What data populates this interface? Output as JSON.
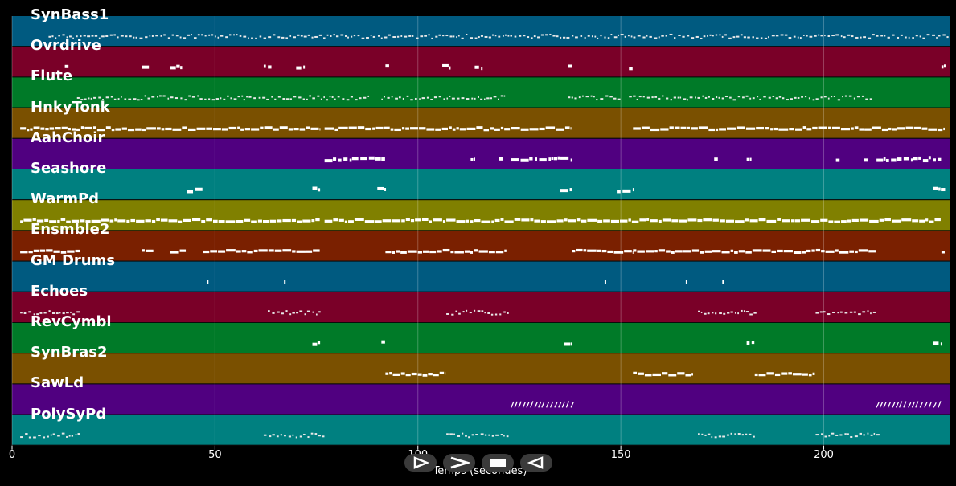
{
  "xlabel": "Temps (secondes)",
  "ticks": [
    "0",
    "50",
    "100",
    "150",
    "200"
  ],
  "controls": {
    "play": "play-icon",
    "forward": "forward-icon",
    "stop": "stop-icon",
    "rewind": "rewind-icon"
  },
  "chart_data": {
    "type": "piano-roll",
    "xlim": [
      0,
      231
    ],
    "xticks": [
      0,
      50,
      100,
      150,
      200
    ],
    "grid": true,
    "tracks": [
      {
        "name": "SynBass1",
        "color": "#005a80",
        "active": [
          [
            9,
            231
          ]
        ],
        "style": "dots"
      },
      {
        "name": "Ovrdrive",
        "color": "#7a0028",
        "active": [
          [
            13,
            14
          ],
          [
            32,
            34
          ],
          [
            39,
            42
          ],
          [
            62,
            64
          ],
          [
            70,
            72
          ],
          [
            92,
            93
          ],
          [
            106,
            108
          ],
          [
            114,
            116
          ],
          [
            137,
            138
          ],
          [
            152,
            153
          ],
          [
            229,
            230
          ]
        ],
        "style": "blocks"
      },
      {
        "name": "Flute",
        "color": "#007a28",
        "active": [
          [
            16,
            57
          ],
          [
            57,
            88
          ],
          [
            91,
            122
          ],
          [
            137,
            150
          ],
          [
            152,
            212
          ]
        ],
        "style": "dots"
      },
      {
        "name": "HnkyTonk",
        "color": "#7a5000",
        "active": [
          [
            2,
            17
          ],
          [
            17,
            76
          ],
          [
            77,
            138
          ],
          [
            153,
            230
          ]
        ],
        "style": "bars"
      },
      {
        "name": "AahChoir",
        "color": "#500080",
        "active": [
          [
            77,
            92
          ],
          [
            113,
            114
          ],
          [
            120,
            121
          ],
          [
            123,
            138
          ],
          [
            173,
            174
          ],
          [
            181,
            182
          ],
          [
            203,
            204
          ],
          [
            210,
            211
          ],
          [
            213,
            229
          ]
        ],
        "style": "blocks"
      },
      {
        "name": "Seashore",
        "color": "#008080",
        "active": [
          [
            43,
            47
          ],
          [
            74,
            76
          ],
          [
            90,
            92
          ],
          [
            135,
            138
          ],
          [
            149,
            153
          ],
          [
            227,
            230
          ]
        ],
        "style": "blocks"
      },
      {
        "name": "WarmPd",
        "color": "#808000",
        "active": [
          [
            2,
            76
          ],
          [
            77,
            229
          ]
        ],
        "style": "bars"
      },
      {
        "name": "Ensmble2",
        "color": "#7a2000",
        "active": [
          [
            2,
            17
          ],
          [
            32,
            35
          ],
          [
            39,
            43
          ],
          [
            47,
            76
          ],
          [
            92,
            122
          ],
          [
            138,
            153
          ],
          [
            153,
            213
          ],
          [
            229,
            230
          ]
        ],
        "style": "bars"
      },
      {
        "name": "GM Drums",
        "color": "#005a80",
        "active": [
          [
            48,
            49
          ],
          [
            67,
            68
          ],
          [
            146,
            147
          ],
          [
            166,
            167
          ],
          [
            175,
            176
          ]
        ],
        "style": "ticks"
      },
      {
        "name": "Echoes",
        "color": "#7a0028",
        "active": [
          [
            2,
            17
          ],
          [
            63,
            76
          ],
          [
            107,
            122
          ],
          [
            169,
            183
          ],
          [
            198,
            213
          ]
        ],
        "style": "dots"
      },
      {
        "name": "RevCymbl",
        "color": "#007a28",
        "active": [
          [
            74,
            76
          ],
          [
            91,
            92
          ],
          [
            136,
            138
          ],
          [
            181,
            183
          ],
          [
            227,
            229
          ]
        ],
        "style": "blocks"
      },
      {
        "name": "SynBras2",
        "color": "#7a5000",
        "active": [
          [
            92,
            107
          ],
          [
            153,
            168
          ],
          [
            183,
            198
          ]
        ],
        "style": "bars"
      },
      {
        "name": "SawLd",
        "color": "#500080",
        "active": [
          [
            123,
            138
          ],
          [
            213,
            229
          ]
        ],
        "style": "slashes"
      },
      {
        "name": "PolySyPd",
        "color": "#008080",
        "active": [
          [
            2,
            17
          ],
          [
            62,
            77
          ],
          [
            107,
            122
          ],
          [
            169,
            183
          ],
          [
            198,
            213
          ]
        ],
        "style": "dots"
      }
    ]
  }
}
